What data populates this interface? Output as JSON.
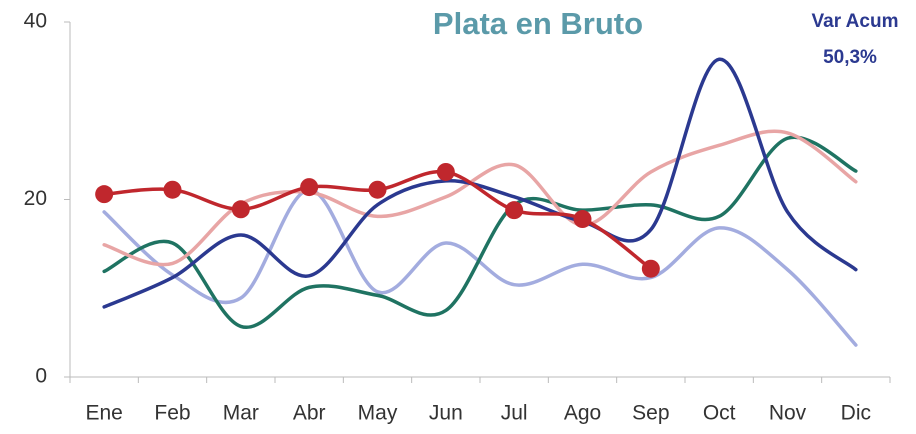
{
  "chart_data": {
    "type": "line",
    "title": "Plata en Bruto",
    "annotations": [
      "Var Acum",
      "50,3%"
    ],
    "categories": [
      "Ene",
      "Feb",
      "Mar",
      "Abr",
      "May",
      "Jun",
      "Jul",
      "Ago",
      "Sep",
      "Oct",
      "Nov",
      "Dic"
    ],
    "ylim": [
      0,
      40
    ],
    "yticks": [
      0,
      20,
      40
    ],
    "grid": false,
    "smooth": true,
    "series": [
      {
        "color": "#a3acdf",
        "values": [
          18.6,
          11.5,
          8.9,
          21.1,
          9.6,
          15.1,
          10.4,
          12.7,
          11.2,
          16.8,
          12.1,
          3.6
        ]
      },
      {
        "color": "#1f7362",
        "values": [
          11.9,
          15.1,
          5.7,
          10.1,
          9.2,
          7.5,
          19.4,
          18.8,
          19.4,
          18.1,
          26.9,
          23.2
        ]
      },
      {
        "color": "#e8a5a5",
        "values": [
          14.9,
          12.8,
          19.5,
          20.8,
          18.1,
          20.3,
          23.9,
          17.1,
          23.1,
          26.1,
          27.5,
          22.0
        ]
      },
      {
        "color": "#2b3990",
        "values": [
          7.9,
          11.2,
          16.0,
          11.4,
          19.4,
          22.1,
          20.3,
          17.5,
          16.6,
          35.8,
          18.6,
          12.1
        ]
      },
      {
        "color": "#c0272d",
        "markers": true,
        "values": [
          20.6,
          21.1,
          18.9,
          21.4,
          21.1,
          23.1,
          18.8,
          17.8,
          12.2,
          null,
          null,
          null
        ]
      }
    ]
  }
}
